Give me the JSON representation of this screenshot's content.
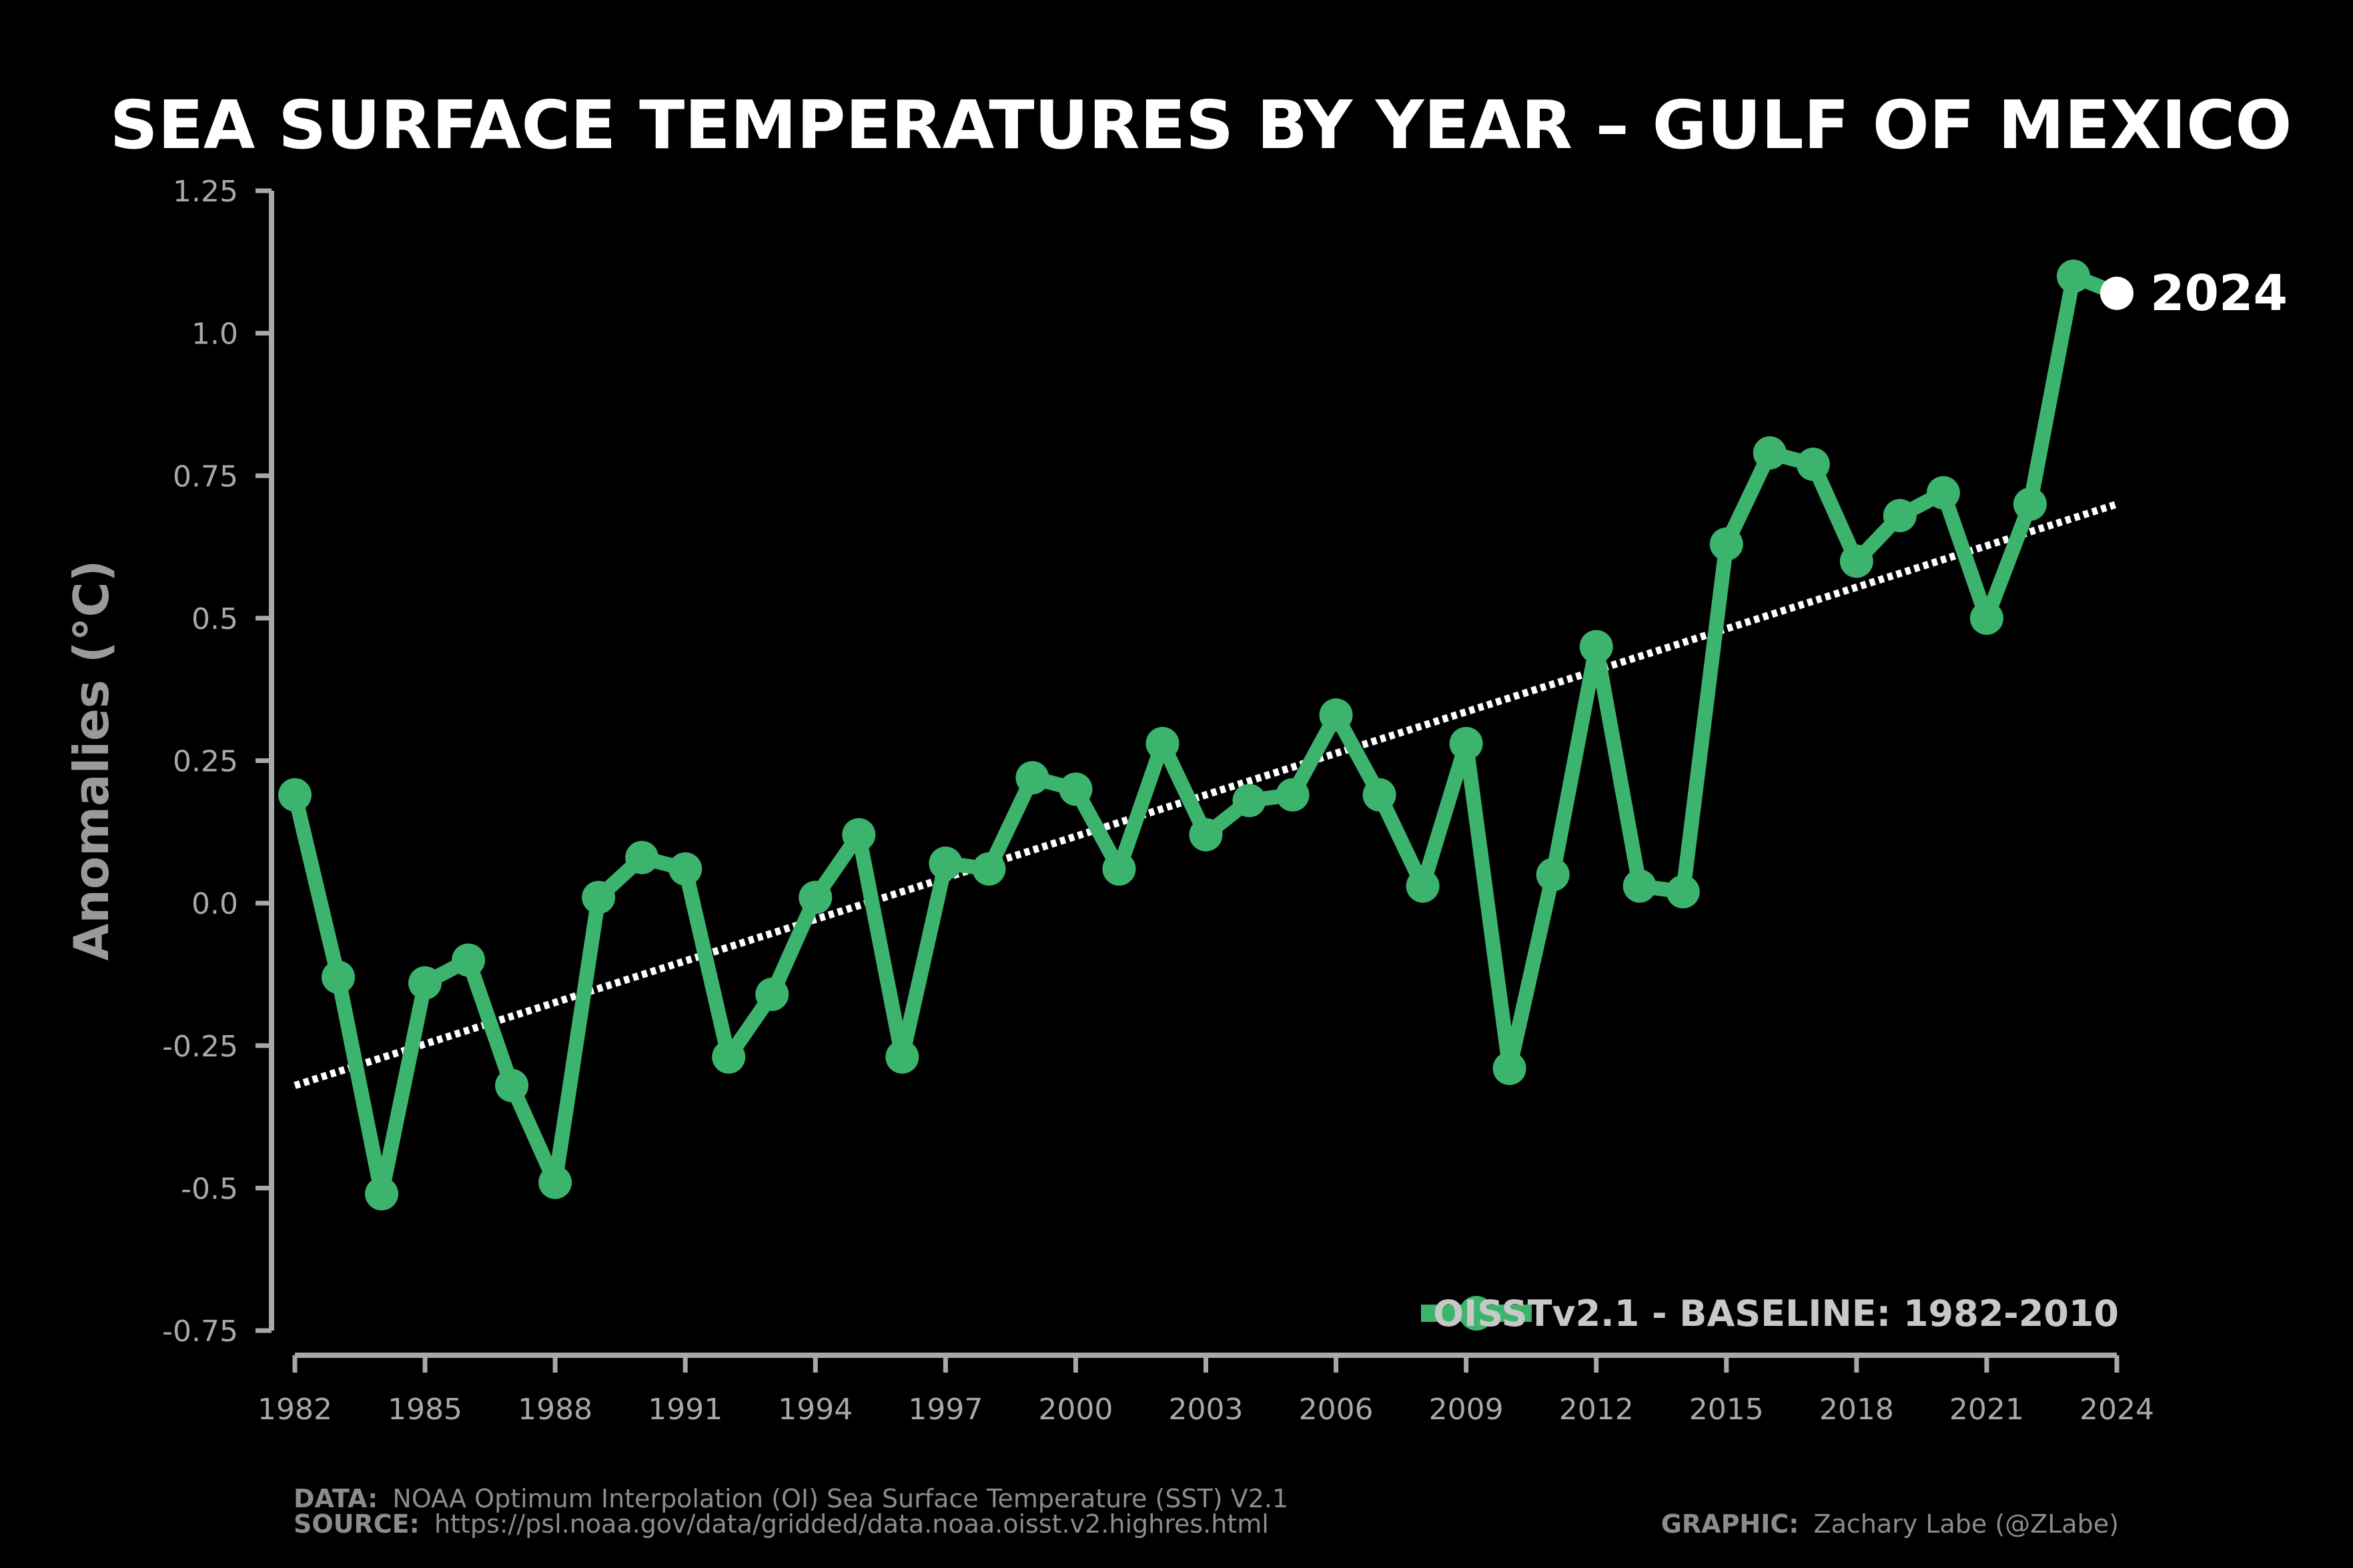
{
  "chart_data": {
    "type": "line",
    "title": "SEA SURFACE TEMPERATURES BY YEAR – GULF OF MEXICO",
    "ylabel": "Anomalies (°C)",
    "xlabel": "",
    "ylim": [
      -0.75,
      1.25
    ],
    "xlim": [
      1982,
      2024
    ],
    "y_ticks": [
      "-0.75",
      "-0.5",
      "-0.25",
      "0.0",
      "0.25",
      "0.5",
      "0.75",
      "1.0",
      "1.25"
    ],
    "y_tick_values": [
      -0.75,
      -0.5,
      -0.25,
      0.0,
      0.25,
      0.5,
      0.75,
      1.0,
      1.25
    ],
    "x_ticks": [
      "1982",
      "1985",
      "1988",
      "1991",
      "1994",
      "1997",
      "2000",
      "2003",
      "2006",
      "2009",
      "2012",
      "2015",
      "2018",
      "2021",
      "2024"
    ],
    "x_tick_values": [
      1982,
      1985,
      1988,
      1991,
      1994,
      1997,
      2000,
      2003,
      2006,
      2009,
      2012,
      2015,
      2018,
      2021,
      2024
    ],
    "series": [
      {
        "name": "OISSTv2.1 - BASELINE: 1982-2010",
        "color": "#3db46d",
        "x": [
          1982,
          1983,
          1984,
          1985,
          1986,
          1987,
          1988,
          1989,
          1990,
          1991,
          1992,
          1993,
          1994,
          1995,
          1996,
          1997,
          1998,
          1999,
          2000,
          2001,
          2002,
          2003,
          2004,
          2005,
          2006,
          2007,
          2008,
          2009,
          2010,
          2011,
          2012,
          2013,
          2014,
          2015,
          2016,
          2017,
          2018,
          2019,
          2020,
          2021,
          2022,
          2023,
          2024
        ],
        "values": [
          0.19,
          -0.13,
          -0.51,
          -0.14,
          -0.1,
          -0.32,
          -0.49,
          0.01,
          0.08,
          0.06,
          -0.27,
          -0.16,
          0.01,
          0.12,
          -0.27,
          0.07,
          0.06,
          0.22,
          0.2,
          0.06,
          0.28,
          0.12,
          0.18,
          0.19,
          0.33,
          0.19,
          0.03,
          0.28,
          -0.29,
          0.05,
          0.45,
          0.03,
          0.02,
          0.63,
          0.79,
          0.77,
          0.6,
          0.68,
          0.72,
          0.5,
          0.7,
          1.1,
          1.07
        ]
      }
    ],
    "trend": {
      "color": "#ffffff",
      "style": "dotted",
      "x": [
        1982,
        2024
      ],
      "values": [
        -0.32,
        0.7
      ]
    },
    "highlight": {
      "x": 2024,
      "value": 1.07,
      "label": "2024",
      "color": "#ffffff"
    },
    "legend": {
      "position": "bottom-right",
      "label": "OISSTv2.1 - BASELINE: 1982-2010"
    },
    "grid": false
  },
  "credits": {
    "data_label": "DATA:",
    "data_text": "NOAA Optimum Interpolation (OI) Sea Surface Temperature (SST) V2.1",
    "source_label": "SOURCE:",
    "source_text": "https://psl.noaa.gov/data/gridded/data.noaa.oisst.v2.highres.html",
    "graphic_label": "GRAPHIC:",
    "graphic_text": "Zachary Labe (@ZLabe)"
  },
  "colors": {
    "background": "#000000",
    "axis": "#a8a8a8",
    "series": "#3db46d",
    "trend": "#ffffff"
  }
}
